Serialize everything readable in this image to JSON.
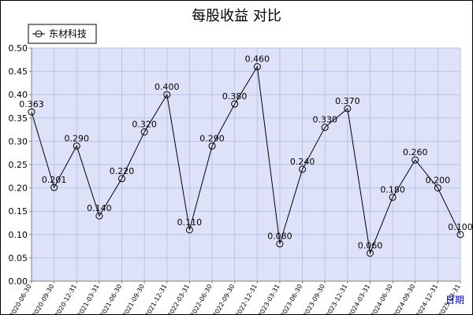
{
  "chart_data": {
    "type": "line",
    "title": "每股收益  对比",
    "xlabel": "日期",
    "ylabel": "",
    "legend_position": "top-left",
    "grid": true,
    "ylim": [
      0,
      0.5
    ],
    "yticks": [
      "0.00",
      "0.05",
      "0.10",
      "0.15",
      "0.20",
      "0.25",
      "0.30",
      "0.35",
      "0.40",
      "0.45",
      "0.50"
    ],
    "categories": [
      "2020-06-30",
      "2020-09-30",
      "2020-12-31",
      "2021-03-31",
      "2021-06-30",
      "2021-09-30",
      "2021-12-31",
      "2022-03-31",
      "2022-06-30",
      "2022-09-30",
      "2022-12-31",
      "2023-03-31",
      "2023-06-30",
      "2023-09-30",
      "2023-12-31",
      "2024-03-31",
      "2024-06-30",
      "2024-09-30",
      "2024-12-31",
      "2025-03-31"
    ],
    "series": [
      {
        "name": "东材科技",
        "values": [
          0.363,
          0.201,
          0.29,
          0.14,
          0.22,
          0.32,
          0.4,
          0.11,
          0.29,
          0.38,
          0.46,
          0.08,
          0.24,
          0.33,
          0.37,
          0.06,
          0.18,
          0.26,
          0.2,
          0.1
        ],
        "labels": [
          "0.363",
          "0.201",
          "0.290",
          "0.140",
          "0.220",
          "0.320",
          "0.400",
          "0.110",
          "0.290",
          "0.380",
          "0.460",
          "0.080",
          "0.240",
          "0.330",
          "0.370",
          "0.060",
          "0.180",
          "0.260",
          "0.200",
          "0.100"
        ]
      }
    ],
    "colors": {
      "plot_bg": "#dde2f8",
      "grid": "#b9c3e8",
      "line": "#000000"
    }
  }
}
